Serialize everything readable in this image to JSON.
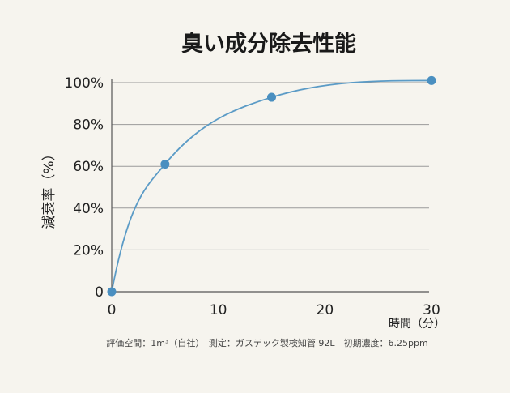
{
  "chart_data": {
    "type": "line",
    "title": "臭い成分除去性能",
    "xlabel": "時間（分）",
    "ylabel": "減衰率（%）",
    "x_ticks": [
      "0",
      "10",
      "20",
      "30"
    ],
    "y_ticks": [
      "0",
      "20%",
      "40%",
      "60%",
      "80%",
      "100%"
    ],
    "xlim": [
      0,
      30
    ],
    "ylim": [
      0,
      100
    ],
    "grid": true,
    "series": [
      {
        "x": [
          0,
          5,
          15,
          30
        ],
        "y": [
          0,
          61,
          93,
          101
        ]
      }
    ],
    "footnote": "評価空間：1m³（自社）　測定：ガステック製検知管 92L　初期濃度：6.25ppm",
    "colors": {
      "line": "#5b9bc6",
      "marker": "#4a8fc0",
      "grid": "#9a9a9a",
      "axis": "#555555"
    }
  }
}
